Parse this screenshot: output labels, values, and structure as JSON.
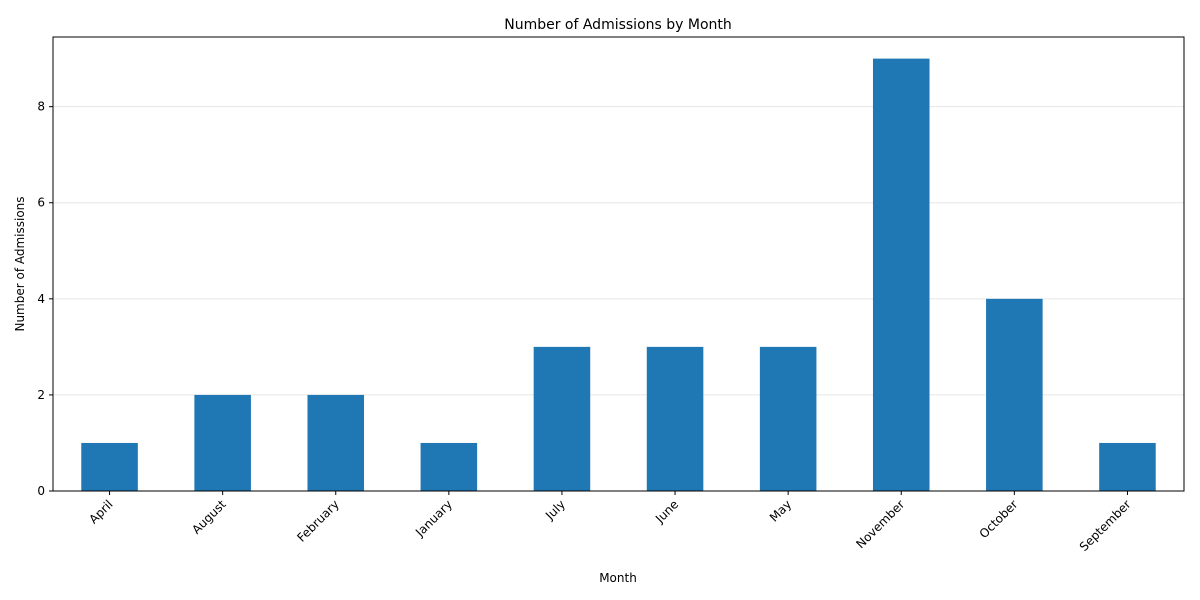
{
  "chart_data": {
    "type": "bar",
    "title": "Number of Admissions by Month",
    "xlabel": "Month",
    "ylabel": "Number of Admissions",
    "categories": [
      "April",
      "August",
      "February",
      "January",
      "July",
      "June",
      "May",
      "November",
      "October",
      "September"
    ],
    "values": [
      1,
      2,
      2,
      1,
      3,
      3,
      3,
      9,
      4,
      1
    ],
    "ylim": [
      0,
      9.45
    ],
    "yticks": [
      0,
      2,
      4,
      6,
      8
    ],
    "grid": "y-axis",
    "legend": "none",
    "bar_color": "#1f77b4"
  }
}
